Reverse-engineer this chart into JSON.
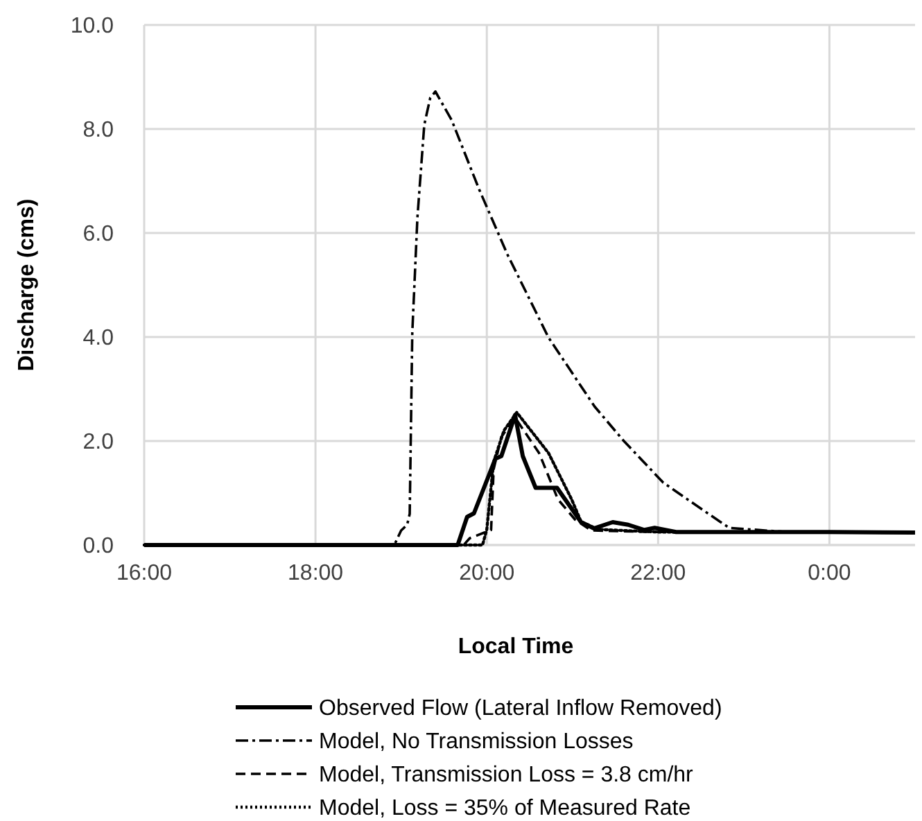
{
  "chart_data": {
    "type": "line",
    "xlabel": "Local Time",
    "ylabel": "Discharge (cms)",
    "xlim": [
      16,
      25
    ],
    "xticks": [
      {
        "value": 16,
        "label": "16:00"
      },
      {
        "value": 18,
        "label": "18:00"
      },
      {
        "value": 20,
        "label": "20:00"
      },
      {
        "value": 22,
        "label": "22:00"
      },
      {
        "value": 24,
        "label": "0:00"
      }
    ],
    "ylim": [
      0,
      10
    ],
    "yticks": [
      {
        "value": 0,
        "label": "0.0"
      },
      {
        "value": 2,
        "label": "2.0"
      },
      {
        "value": 4,
        "label": "4.0"
      },
      {
        "value": 6,
        "label": "6.0"
      },
      {
        "value": 8,
        "label": "8.0"
      },
      {
        "value": 10,
        "label": "10.0"
      }
    ],
    "grid": true,
    "legend": "bottom",
    "marker": "none",
    "series": [
      {
        "name": "Observed Flow (Lateral Inflow Removed)",
        "color": "#000000",
        "line_style": "solid",
        "x": [
          16,
          19.66,
          19.77,
          19.85,
          20.1,
          20.17,
          20.33,
          20.42,
          20.57,
          20.82,
          21.1,
          21.25,
          21.47,
          21.65,
          21.84,
          21.96,
          22.21,
          23,
          24,
          25
        ],
        "values": [
          0,
          0,
          0.54,
          0.61,
          1.66,
          1.71,
          2.5,
          1.71,
          1.1,
          1.1,
          0.44,
          0.32,
          0.44,
          0.39,
          0.29,
          0.33,
          0.25,
          0.25,
          0.25,
          0.24
        ]
      },
      {
        "name": "Model, No Transmission Losses",
        "color": "#000000",
        "line_style": "dashdot",
        "x": [
          16,
          18.92,
          19.0,
          19.07,
          19.1,
          19.13,
          19.19,
          19.27,
          19.34,
          19.4,
          19.59,
          19.91,
          20.24,
          20.72,
          21.26,
          21.6,
          22.06,
          22.5,
          22.83,
          23.5,
          24,
          25
        ],
        "values": [
          0,
          0,
          0.28,
          0.39,
          0.6,
          4.08,
          6.3,
          8.08,
          8.6,
          8.72,
          8.17,
          6.84,
          5.59,
          3.99,
          2.66,
          2.0,
          1.2,
          0.7,
          0.33,
          0.25,
          0.25,
          0.24
        ]
      },
      {
        "name": "Model, Transmission Loss = 3.8 cm/hr",
        "color": "#000000",
        "line_style": "dashed",
        "x": [
          16,
          19.73,
          19.8,
          20.05,
          20.08,
          20.17,
          20.33,
          20.61,
          20.83,
          21.03,
          21.22,
          22,
          23,
          24,
          25
        ],
        "values": [
          0,
          0,
          0.13,
          0.29,
          1.46,
          2.08,
          2.45,
          1.77,
          0.88,
          0.49,
          0.28,
          0.25,
          0.25,
          0.25,
          0.24
        ]
      },
      {
        "name": "Model, Loss = 35% of Measured Rate",
        "color": "#000000",
        "line_style": "dotted",
        "x": [
          16,
          19.95,
          20.0,
          20.08,
          20.2,
          20.35,
          20.72,
          20.99,
          21.1,
          21.3,
          22,
          23,
          24,
          25
        ],
        "values": [
          0,
          0,
          0.3,
          1.6,
          2.2,
          2.55,
          1.77,
          0.88,
          0.45,
          0.3,
          0.25,
          0.25,
          0.25,
          0.24
        ]
      }
    ]
  }
}
